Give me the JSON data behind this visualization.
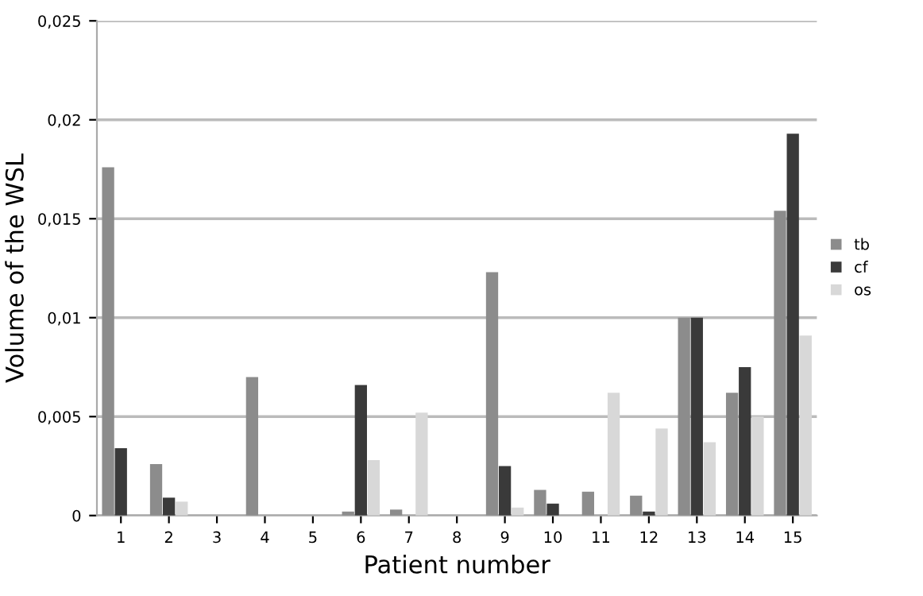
{
  "chart_data": {
    "type": "bar",
    "xlabel": "Patient number",
    "ylabel": "Volume of the WSL",
    "categories": [
      "1",
      "2",
      "3",
      "4",
      "5",
      "6",
      "7",
      "8",
      "9",
      "10",
      "11",
      "12",
      "13",
      "14",
      "15"
    ],
    "series": [
      {
        "name": "tb",
        "color": "#8c8c8c",
        "values": [
          0.0176,
          0.0026,
          0,
          0.007,
          0,
          0.0002,
          0.0003,
          0,
          0.0123,
          0.0013,
          0.0012,
          0.001,
          0.01,
          0.0062,
          0.0154
        ]
      },
      {
        "name": "cf",
        "color": "#3a3a3a",
        "values": [
          0.0034,
          0.0009,
          0,
          0,
          0,
          0.0066,
          0,
          0,
          0.0025,
          0.0006,
          0,
          0.0002,
          0.01,
          0.0075,
          0.0193
        ]
      },
      {
        "name": "os",
        "color": "#d8d8d8",
        "values": [
          0,
          0.0007,
          0,
          0,
          0,
          0.0028,
          0.0052,
          0,
          0.0004,
          0,
          0.0062,
          0.0044,
          0.0037,
          0.005,
          0.0091
        ]
      }
    ],
    "ylim": [
      0,
      0.025
    ],
    "yticks": [
      {
        "value": 0,
        "label": "0"
      },
      {
        "value": 0.005,
        "label": "0,005"
      },
      {
        "value": 0.01,
        "label": "0,01"
      },
      {
        "value": 0.015,
        "label": "0,015"
      },
      {
        "value": 0.02,
        "label": "0,02"
      },
      {
        "value": 0.025,
        "label": "0,025"
      }
    ],
    "grid": "y",
    "legend": "right"
  }
}
